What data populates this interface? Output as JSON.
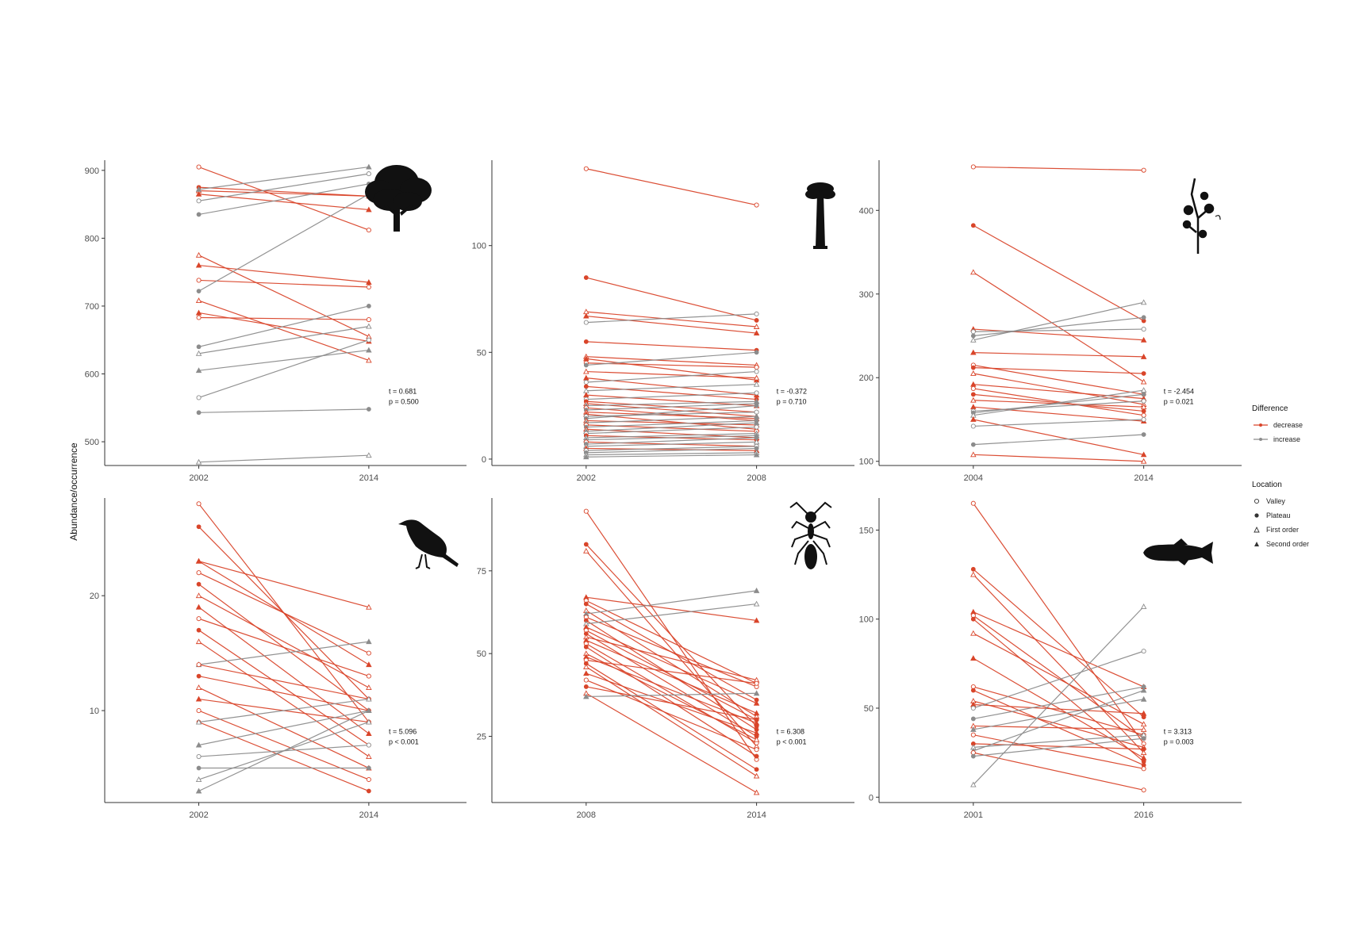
{
  "y_axis_label": "Abundance/occurrence",
  "colors": {
    "decrease": "#d9452a",
    "increase": "#8c8c8c",
    "axis": "#333333"
  },
  "legend": {
    "difference_title": "Difference",
    "difference_items": [
      "decrease",
      "increase"
    ],
    "location_title": "Location",
    "location_items": [
      "Valley",
      "Plateau",
      "First order",
      "Second order"
    ]
  },
  "chart_data": [
    {
      "type": "line",
      "panel": "tree",
      "icon": "tree-silhouette-icon",
      "x": [
        "2002",
        "2014"
      ],
      "ylim": [
        465,
        915
      ],
      "yticks": [
        500,
        600,
        700,
        800,
        900
      ],
      "stat_lines": [
        "t = 0.681",
        "p = 0.500"
      ],
      "pairs": [
        [
          905,
          812
        ],
        [
          875,
          862
        ],
        [
          870,
          862
        ],
        [
          865,
          842
        ],
        [
          855,
          895
        ],
        [
          835,
          880
        ],
        [
          775,
          655
        ],
        [
          760,
          735
        ],
        [
          738,
          728
        ],
        [
          722,
          865
        ],
        [
          708,
          620
        ],
        [
          690,
          648
        ],
        [
          683,
          680
        ],
        [
          640,
          700
        ],
        [
          630,
          670
        ],
        [
          605,
          635
        ],
        [
          565,
          650
        ],
        [
          543,
          548
        ],
        [
          470,
          480
        ],
        [
          872,
          905
        ]
      ]
    },
    {
      "type": "line",
      "panel": "palm",
      "icon": "palm-tree-silhouette-icon",
      "x": [
        "2002",
        "2008"
      ],
      "ylim": [
        -3,
        140
      ],
      "yticks": [
        0,
        50,
        100
      ],
      "stat_lines": [
        "t = -0.372",
        "p = 0.710"
      ],
      "pairs": [
        [
          136,
          119
        ],
        [
          85,
          65
        ],
        [
          69,
          62
        ],
        [
          67,
          59
        ],
        [
          64,
          68
        ],
        [
          55,
          51
        ],
        [
          48,
          44
        ],
        [
          47,
          37
        ],
        [
          45,
          43
        ],
        [
          44,
          50
        ],
        [
          41,
          38
        ],
        [
          38,
          30
        ],
        [
          36,
          41
        ],
        [
          34,
          28
        ],
        [
          32,
          35
        ],
        [
          30,
          25
        ],
        [
          28,
          31
        ],
        [
          27,
          22
        ],
        [
          26,
          20
        ],
        [
          25,
          27
        ],
        [
          24,
          18
        ],
        [
          23,
          26
        ],
        [
          22,
          19
        ],
        [
          21,
          14
        ],
        [
          20,
          22
        ],
        [
          19,
          25
        ],
        [
          18,
          16
        ],
        [
          17,
          20
        ],
        [
          16,
          13
        ],
        [
          15,
          18
        ],
        [
          14,
          10
        ],
        [
          13,
          17
        ],
        [
          12,
          15
        ],
        [
          11,
          9
        ],
        [
          10,
          12
        ],
        [
          9,
          11
        ],
        [
          8,
          6
        ],
        [
          7,
          10
        ],
        [
          6,
          8
        ],
        [
          5,
          4
        ],
        [
          4,
          6
        ],
        [
          3,
          5
        ],
        [
          2,
          3
        ],
        [
          1,
          2
        ]
      ]
    },
    {
      "type": "line",
      "panel": "plant",
      "icon": "plant-stem-silhouette-icon",
      "x": [
        "2004",
        "2014"
      ],
      "ylim": [
        95,
        460
      ],
      "yticks": [
        100,
        200,
        300,
        400
      ],
      "stat_lines": [
        "t = -2.454",
        "p = 0.021"
      ],
      "pairs": [
        [
          452,
          448
        ],
        [
          382,
          268
        ],
        [
          326,
          195
        ],
        [
          258,
          245
        ],
        [
          255,
          258
        ],
        [
          250,
          272
        ],
        [
          245,
          290
        ],
        [
          230,
          225
        ],
        [
          215,
          180
        ],
        [
          212,
          205
        ],
        [
          205,
          168
        ],
        [
          192,
          175
        ],
        [
          187,
          155
        ],
        [
          180,
          160
        ],
        [
          173,
          165
        ],
        [
          165,
          148
        ],
        [
          160,
          172
        ],
        [
          158,
          180
        ],
        [
          155,
          185
        ],
        [
          150,
          108
        ],
        [
          142,
          150
        ],
        [
          120,
          132
        ],
        [
          108,
          100
        ]
      ]
    },
    {
      "type": "line",
      "panel": "bird",
      "icon": "bird-silhouette-icon",
      "x": [
        "2002",
        "2014"
      ],
      "ylim": [
        2,
        28.5
      ],
      "yticks": [
        10,
        20
      ],
      "stat_lines": [
        "t = 5.096",
        "p < 0.001"
      ],
      "pairs": [
        [
          28,
          9
        ],
        [
          26,
          11
        ],
        [
          23,
          19
        ],
        [
          23,
          14
        ],
        [
          22,
          15
        ],
        [
          21,
          10
        ],
        [
          20,
          12
        ],
        [
          19,
          8
        ],
        [
          18,
          13
        ],
        [
          17,
          7
        ],
        [
          16,
          6
        ],
        [
          14,
          16
        ],
        [
          14,
          11
        ],
        [
          13,
          10
        ],
        [
          12,
          5
        ],
        [
          11,
          9
        ],
        [
          10,
          4
        ],
        [
          9,
          3
        ],
        [
          9,
          11
        ],
        [
          7,
          10
        ],
        [
          6,
          7
        ],
        [
          5,
          5
        ],
        [
          4,
          9
        ],
        [
          3,
          10
        ]
      ]
    },
    {
      "type": "line",
      "panel": "ant",
      "icon": "ant-silhouette-icon",
      "x": [
        "2008",
        "2014"
      ],
      "ylim": [
        5,
        97
      ],
      "yticks": [
        25,
        50,
        75
      ],
      "stat_lines": [
        "t = 6.308",
        "p < 0.001"
      ],
      "pairs": [
        [
          93,
          18
        ],
        [
          83,
          28
        ],
        [
          81,
          22
        ],
        [
          67,
          60
        ],
        [
          66,
          41
        ],
        [
          65,
          36
        ],
        [
          63,
          31
        ],
        [
          62,
          69
        ],
        [
          61,
          40
        ],
        [
          60,
          27
        ],
        [
          59,
          65
        ],
        [
          58,
          35
        ],
        [
          57,
          30
        ],
        [
          56,
          25
        ],
        [
          55,
          42
        ],
        [
          54,
          32
        ],
        [
          53,
          23
        ],
        [
          52,
          19
        ],
        [
          50,
          24
        ],
        [
          49,
          29
        ],
        [
          48,
          41
        ],
        [
          47,
          15
        ],
        [
          46,
          13
        ],
        [
          44,
          26
        ],
        [
          42,
          21
        ],
        [
          40,
          30
        ],
        [
          38,
          8
        ],
        [
          37,
          38
        ]
      ]
    },
    {
      "type": "line",
      "panel": "fish",
      "icon": "fish-silhouette-icon",
      "x": [
        "2001",
        "2016"
      ],
      "ylim": [
        -3,
        168
      ],
      "yticks": [
        0,
        50,
        100,
        150
      ],
      "stat_lines": [
        "t = 3.313",
        "p = 0.003"
      ],
      "pairs": [
        [
          165,
          30
        ],
        [
          128,
          45
        ],
        [
          125,
          25
        ],
        [
          104,
          62
        ],
        [
          102,
          33
        ],
        [
          100,
          20
        ],
        [
          92,
          41
        ],
        [
          78,
          22
        ],
        [
          62,
          35
        ],
        [
          60,
          18
        ],
        [
          54,
          28
        ],
        [
          52,
          47
        ],
        [
          50,
          82
        ],
        [
          44,
          62
        ],
        [
          40,
          38
        ],
        [
          38,
          55
        ],
        [
          35,
          16
        ],
        [
          30,
          27
        ],
        [
          28,
          35
        ],
        [
          26,
          60
        ],
        [
          25,
          4
        ],
        [
          23,
          33
        ],
        [
          7,
          107
        ]
      ]
    }
  ]
}
